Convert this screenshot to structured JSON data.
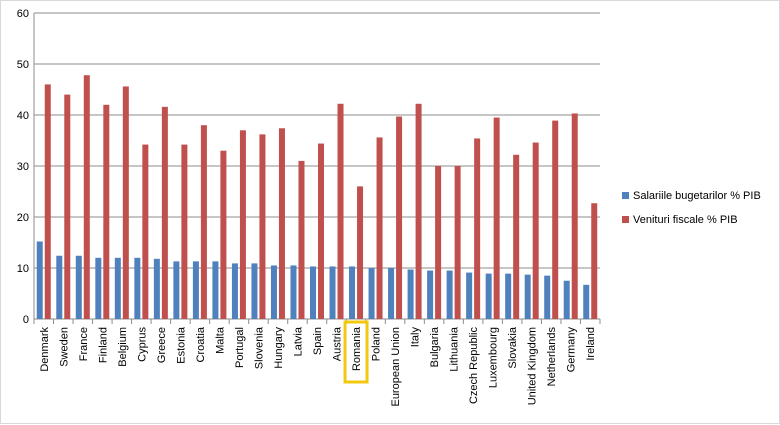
{
  "chart_data": {
    "type": "bar",
    "title": "",
    "xlabel": "",
    "ylabel": "",
    "ylim": [
      0,
      60
    ],
    "yticks": [
      0,
      10,
      20,
      30,
      40,
      50,
      60
    ],
    "grid": true,
    "legend_position": "right",
    "highlighted_category": "Romania",
    "highlight_color": "#f2c811",
    "categories": [
      "Denmark",
      "Sweden",
      "France",
      "Finland",
      "Belgium",
      "Cyprus",
      "Greece",
      "Estonia",
      "Croatia",
      "Malta",
      "Portugal",
      "Slovenia",
      "Hungary",
      "Latvia",
      "Spain",
      "Austria",
      "Romania",
      "Poland",
      "European Union",
      "Italy",
      "Bulgaria",
      "Lithuania",
      "Czech Republic",
      "Luxembourg",
      "Slovakia",
      "United Kingdom",
      "Netherlands",
      "Germany",
      "Ireland"
    ],
    "series": [
      {
        "name": "Salariile bugetarilor  % PIB",
        "color": "#4f81bd",
        "values": [
          15.2,
          12.4,
          12.4,
          12.0,
          12.0,
          12.0,
          11.8,
          11.3,
          11.3,
          11.3,
          10.9,
          10.9,
          10.5,
          10.5,
          10.3,
          10.3,
          10.3,
          10.0,
          10.0,
          9.7,
          9.5,
          9.5,
          9.1,
          8.9,
          8.9,
          8.7,
          8.5,
          7.5,
          6.7
        ]
      },
      {
        "name": "Venituri fiscale  % PIB",
        "color": "#c0504d",
        "values": [
          46.0,
          44.0,
          47.8,
          42.0,
          45.6,
          34.2,
          41.6,
          34.2,
          38.0,
          33.0,
          37.0,
          36.2,
          37.4,
          31.0,
          34.4,
          42.2,
          26.0,
          35.6,
          39.7,
          42.2,
          30.0,
          30.0,
          35.4,
          39.5,
          32.2,
          34.6,
          38.9,
          40.3,
          22.7
        ]
      }
    ]
  }
}
